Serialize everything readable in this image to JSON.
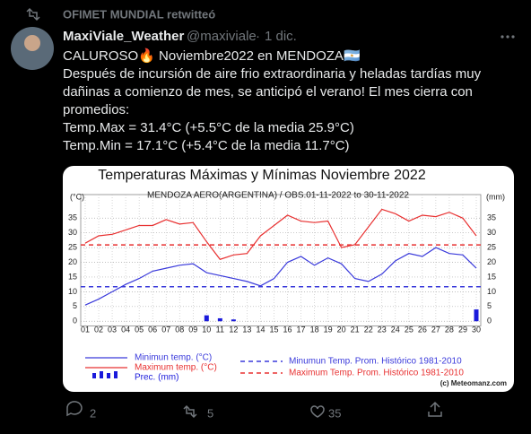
{
  "tweet": {
    "retweet_by": "OFIMET MUNDIAL retwitteó",
    "author": "MaxiViale_Weather",
    "handle": "@maxiviale",
    "separator": "·",
    "date": "1 dic.",
    "text": [
      "CALUROSO🔥 Noviembre2022 en MENDOZA🇦🇷",
      "Después de incursión de aire frio extraordinaria y heladas tardías muy",
      "dañinas a comienzo de mes, se anticipó el verano! El mes cierra con",
      "promedios:",
      "Temp.Max = 31.4°C (+5.5°C de la media 25.9°C)",
      "Temp.Min = 17.1°C (+5.4°C de la media 11.7°C)"
    ],
    "replies": "2",
    "retweets": "5",
    "likes": "35"
  },
  "chart_data": {
    "type": "line",
    "title": "Temperaturas Máximas y Mínimas Noviembre 2022",
    "subtitle": "MENDOZA AERO(ARGENTINA) / OBS.01-11-2022 to 30-11-2022",
    "y_label": "(°C)",
    "y2_label": "(mm)",
    "credit": "(c) Meteomanz.com",
    "categories": [
      "01",
      "02",
      "03",
      "04",
      "05",
      "06",
      "07",
      "08",
      "09",
      "10",
      "11",
      "12",
      "13",
      "14",
      "15",
      "16",
      "17",
      "18",
      "19",
      "20",
      "21",
      "22",
      "23",
      "24",
      "25",
      "26",
      "27",
      "28",
      "29",
      "30"
    ],
    "series": [
      {
        "name": "Minimun temp. (°C)",
        "color": "#3a3adb",
        "type": "line",
        "values": [
          5.5,
          7.5,
          10,
          12.5,
          14.5,
          17,
          18,
          19,
          19.5,
          16.5,
          15.5,
          14.5,
          13.5,
          12,
          14.5,
          20,
          22,
          19,
          21.5,
          19.5,
          14.5,
          13.5,
          16,
          20.5,
          23,
          22,
          25,
          23,
          22.5,
          18
        ]
      },
      {
        "name": "Maximum temp. (°C)",
        "color": "#e83030",
        "type": "line",
        "values": [
          26.5,
          29,
          29.5,
          31,
          32.5,
          32.5,
          34.5,
          33,
          33.5,
          27,
          21,
          22.5,
          23,
          29,
          32.5,
          36,
          34,
          33.5,
          34,
          25,
          26,
          32,
          38,
          36.5,
          34,
          36,
          35.5,
          37,
          35,
          29
        ]
      },
      {
        "name": "Prec. (mm)",
        "color": "#1a1adb",
        "type": "bar",
        "axis": "y2",
        "values": [
          0,
          0,
          0,
          0,
          0,
          0,
          0,
          0,
          0,
          2,
          1,
          0.6,
          0,
          0,
          0,
          0,
          0,
          0,
          0,
          0,
          0,
          0,
          0,
          0,
          0,
          0,
          0,
          0,
          0,
          4
        ]
      }
    ],
    "reference_lines": [
      {
        "name": "Minumun Temp.  Prom. Histórico 1981-2010",
        "value": 11.7,
        "color": "#3a3adb"
      },
      {
        "name": "Maximum Temp. Prom. Histórico 1981-2010",
        "value": 25.9,
        "color": "#e83030"
      }
    ],
    "ylim": [
      -1,
      43
    ],
    "yticks": [
      0,
      5,
      10,
      15,
      20,
      25,
      30,
      35
    ],
    "y2lim": [
      -1,
      43
    ],
    "y2ticks": [
      0,
      5,
      10,
      15,
      20,
      25,
      30,
      35
    ],
    "grid": true
  }
}
